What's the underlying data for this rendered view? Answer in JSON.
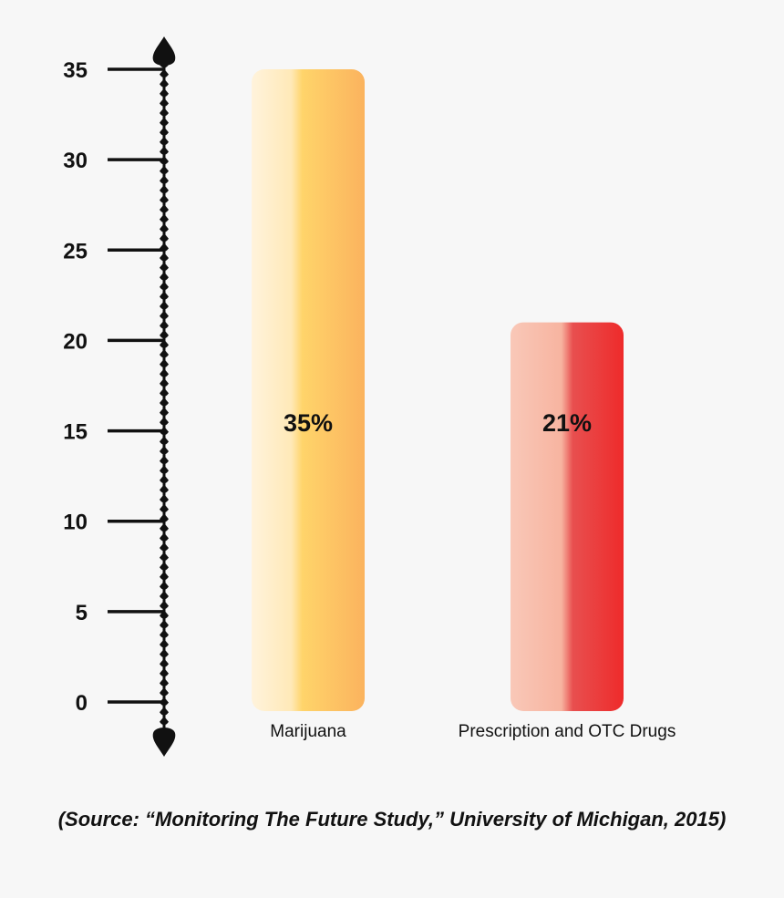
{
  "chart_data": {
    "type": "bar",
    "categories": [
      "Marijuana",
      "Prescription and OTC Drugs"
    ],
    "values": [
      35,
      21
    ],
    "data_labels": [
      "35%",
      "21%"
    ],
    "y_ticks": [
      0,
      5,
      10,
      15,
      20,
      25,
      30,
      35
    ],
    "ylim": [
      0,
      35
    ],
    "grid": false,
    "legend": "none",
    "colors": {
      "bar_1": [
        "#fff3dc",
        "#ffe9b8",
        "#ffd46a",
        "#fbb35e"
      ],
      "bar_2": [
        "#f9c8b8",
        "#f7b4a0",
        "#e84f4f",
        "#ee2b2b"
      ],
      "axis": "#111111"
    },
    "source_note": "(Source: “Monitoring The Future Study,” University of Michigan, 2015)"
  }
}
